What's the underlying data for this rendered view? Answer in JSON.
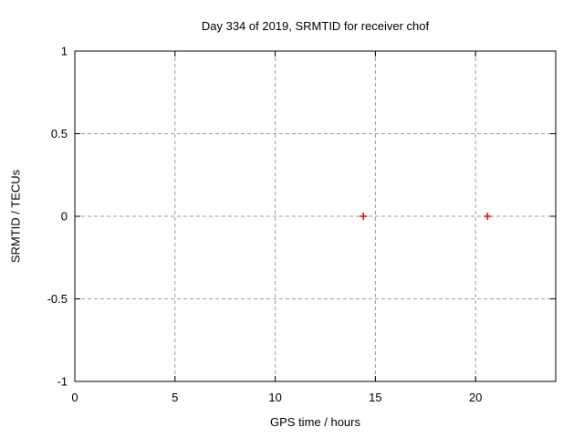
{
  "chart_data": {
    "type": "scatter",
    "title": "Day 334 of 2019, SRMTID for receiver chof",
    "xlabel": "GPS time / hours",
    "ylabel": "SRMTID / TECUs",
    "xlim": [
      0,
      24
    ],
    "ylim": [
      -1,
      1
    ],
    "xticks": [
      0,
      5,
      10,
      15,
      20
    ],
    "yticks": [
      -1,
      -0.5,
      0,
      0.5,
      1
    ],
    "grid": true,
    "legend": "none",
    "series": [
      {
        "name": "SRMTID",
        "marker": "plus",
        "color": "#ff0000",
        "points": [
          {
            "x": 14.4,
            "y": 0.0
          },
          {
            "x": 20.6,
            "y": 0.0
          }
        ]
      }
    ],
    "colors": {
      "background": "#ffffff",
      "axis": "#000000",
      "grid": "#9a9a9a",
      "text": "#000000",
      "marker": "#ff0000"
    }
  }
}
